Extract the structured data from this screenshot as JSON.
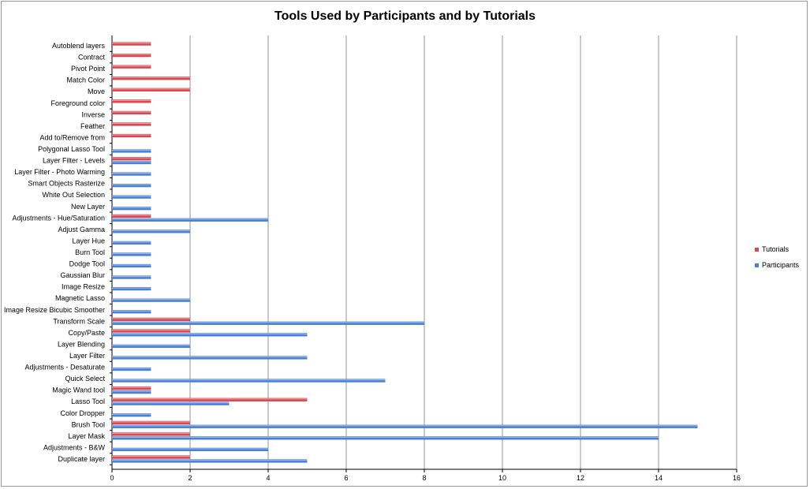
{
  "chart_data": {
    "type": "bar",
    "orientation": "horizontal",
    "title": "Tools Used by Participants and by Tutorials",
    "xlim": [
      0,
      16
    ],
    "xticks": [
      "0",
      "2",
      "4",
      "6",
      "8",
      "10",
      "12",
      "14",
      "16"
    ],
    "grid": "vertical",
    "legend_position": "right",
    "categories": [
      "Autoblend layers",
      "Contract",
      "Pivot Point",
      "Match Color",
      "Move",
      "Foreground color",
      "Inverse",
      "Feather",
      "Add to/Remove from",
      "Polygonal Lasso Tool",
      "Layer Filter - Levels",
      "Layer Filter - Photo Warming",
      "Smart Objects Rasterize",
      "White Out Selection",
      "New Layer",
      "Adjustments - Hue/Saturation",
      "Adjust Gamma",
      "Layer Hue",
      "Burn Tool",
      "Dodge Tool",
      "Gaussian Blur",
      "Image Resize",
      "Magnetic Lasso",
      "Image Resize Bicubic Smoother",
      "Transform Scale",
      "Copy/Paste",
      "Layer Blending",
      "Layer Filter",
      "Adjustments - Desaturate",
      "Quick Select",
      "Magic Wand tool",
      "Lasso Tool",
      "Color Dropper",
      "Brush Tool",
      "Layer Mask",
      "Adjustments - B&W",
      "Duplicate layer"
    ],
    "series": [
      {
        "name": "Tutorials",
        "color": "#d9474f",
        "values": [
          1,
          1,
          1,
          2,
          2,
          1,
          1,
          1,
          1,
          0,
          1,
          0,
          0,
          0,
          0,
          1,
          0,
          0,
          0,
          0,
          0,
          0,
          0,
          0,
          2,
          2,
          0,
          0,
          0,
          0,
          1,
          5,
          0,
          2,
          2,
          0,
          2
        ]
      },
      {
        "name": "Participants",
        "color": "#4a7fd4",
        "values": [
          0,
          0,
          0,
          0,
          0,
          0,
          0,
          0,
          0,
          1,
          1,
          1,
          1,
          1,
          1,
          4,
          2,
          1,
          1,
          1,
          1,
          1,
          2,
          1,
          8,
          5,
          2,
          5,
          1,
          7,
          1,
          3,
          1,
          15,
          14,
          4,
          5
        ]
      }
    ]
  }
}
